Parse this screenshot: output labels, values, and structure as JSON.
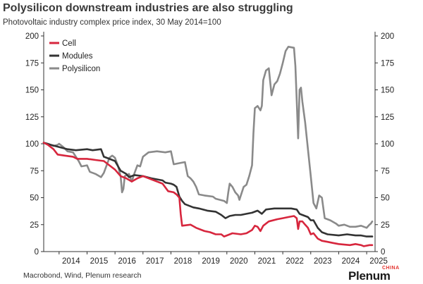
{
  "title": "Polysilicon downstream industries are also struggling",
  "subtitle": "Photovoltaic industry complex price index, 30 May 2014=100",
  "source": "Macrobond, Wind, Plenum research",
  "logo": {
    "word": "Plenum",
    "tag": "CHINA"
  },
  "colors": {
    "cell": "#d7263d",
    "modules": "#333333",
    "polysilicon": "#8a8a8a",
    "accent": "#e3342f"
  },
  "chart_data": {
    "type": "line",
    "title": "Polysilicon downstream industries are also struggling",
    "subtitle": "Photovoltaic industry complex price index, 30 May 2014=100",
    "xlim": [
      2013.45,
      2025.3
    ],
    "ylim": [
      0,
      200
    ],
    "y_ticks": [
      0,
      25,
      50,
      75,
      100,
      125,
      150,
      175,
      200
    ],
    "x_ticks": [
      {
        "label": "2014",
        "x": 2014.0
      },
      {
        "label": "2015",
        "x": 2015.0
      },
      {
        "label": "2016",
        "x": 2016.0
      },
      {
        "label": "2017",
        "x": 2017.0
      },
      {
        "label": "2018",
        "x": 2018.0
      },
      {
        "label": "2019",
        "x": 2019.0
      },
      {
        "label": "2020",
        "x": 2020.0
      },
      {
        "label": "2021",
        "x": 2021.0
      },
      {
        "label": "2022",
        "x": 2022.0
      },
      {
        "label": "2023",
        "x": 2023.0
      },
      {
        "label": "2024",
        "x": 2024.0
      },
      {
        "label": "2025",
        "x": 2025.0
      }
    ],
    "grid": false,
    "legend": "top-left",
    "series": [
      {
        "name": "Cell",
        "color": "#d7263d",
        "points": [
          [
            2013.45,
            101
          ],
          [
            2013.6,
            99
          ],
          [
            2013.8,
            95
          ],
          [
            2013.95,
            90
          ],
          [
            2014.2,
            89
          ],
          [
            2014.5,
            88
          ],
          [
            2014.65,
            86
          ],
          [
            2015.0,
            86
          ],
          [
            2015.3,
            85
          ],
          [
            2015.6,
            84
          ],
          [
            2015.8,
            80
          ],
          [
            2016.0,
            76
          ],
          [
            2016.2,
            70
          ],
          [
            2016.4,
            68
          ],
          [
            2016.6,
            65
          ],
          [
            2016.8,
            68
          ],
          [
            2017.0,
            70
          ],
          [
            2017.3,
            67
          ],
          [
            2017.5,
            65
          ],
          [
            2017.7,
            63
          ],
          [
            2017.9,
            56
          ],
          [
            2018.1,
            55
          ],
          [
            2018.2,
            53
          ],
          [
            2018.3,
            50
          ],
          [
            2018.35,
            35
          ],
          [
            2018.4,
            24
          ],
          [
            2018.7,
            25
          ],
          [
            2018.9,
            22
          ],
          [
            2019.2,
            19
          ],
          [
            2019.4,
            18
          ],
          [
            2019.6,
            16
          ],
          [
            2019.8,
            16
          ],
          [
            2019.9,
            14
          ],
          [
            2020.0,
            15
          ],
          [
            2020.2,
            17
          ],
          [
            2020.5,
            16
          ],
          [
            2020.7,
            17
          ],
          [
            2020.9,
            20
          ],
          [
            2021.0,
            24
          ],
          [
            2021.1,
            23
          ],
          [
            2021.2,
            19
          ],
          [
            2021.3,
            24
          ],
          [
            2021.5,
            28
          ],
          [
            2021.8,
            30
          ],
          [
            2022.0,
            31
          ],
          [
            2022.2,
            32
          ],
          [
            2022.4,
            33
          ],
          [
            2022.5,
            31
          ],
          [
            2022.55,
            21
          ],
          [
            2022.6,
            28
          ],
          [
            2022.7,
            28
          ],
          [
            2022.8,
            25
          ],
          [
            2022.9,
            22
          ],
          [
            2023.0,
            16
          ],
          [
            2023.1,
            17
          ],
          [
            2023.25,
            12
          ],
          [
            2023.4,
            10
          ],
          [
            2023.6,
            9
          ],
          [
            2023.8,
            8
          ],
          [
            2024.0,
            7
          ],
          [
            2024.4,
            6
          ],
          [
            2024.6,
            7
          ],
          [
            2024.8,
            6
          ],
          [
            2024.9,
            5
          ],
          [
            2025.1,
            6
          ],
          [
            2025.2,
            6
          ]
        ]
      },
      {
        "name": "Modules",
        "color": "#333333",
        "points": [
          [
            2013.45,
            101
          ],
          [
            2013.7,
            99
          ],
          [
            2014.0,
            97
          ],
          [
            2014.3,
            95
          ],
          [
            2014.6,
            94
          ],
          [
            2015.0,
            95
          ],
          [
            2015.2,
            94
          ],
          [
            2015.5,
            95
          ],
          [
            2015.6,
            88
          ],
          [
            2015.8,
            86
          ],
          [
            2016.0,
            84
          ],
          [
            2016.2,
            75
          ],
          [
            2016.4,
            72
          ],
          [
            2016.5,
            69
          ],
          [
            2016.7,
            71
          ],
          [
            2017.0,
            70
          ],
          [
            2017.3,
            68
          ],
          [
            2017.5,
            67
          ],
          [
            2017.7,
            66
          ],
          [
            2017.8,
            64
          ],
          [
            2018.0,
            63
          ],
          [
            2018.1,
            62
          ],
          [
            2018.2,
            60
          ],
          [
            2018.3,
            51
          ],
          [
            2018.4,
            47
          ],
          [
            2018.5,
            44
          ],
          [
            2018.8,
            41
          ],
          [
            2019.0,
            40
          ],
          [
            2019.3,
            38
          ],
          [
            2019.6,
            37
          ],
          [
            2019.8,
            34
          ],
          [
            2019.95,
            31
          ],
          [
            2020.1,
            33
          ],
          [
            2020.3,
            34
          ],
          [
            2020.5,
            34
          ],
          [
            2020.7,
            35
          ],
          [
            2020.9,
            36
          ],
          [
            2021.1,
            38
          ],
          [
            2021.25,
            35
          ],
          [
            2021.4,
            39
          ],
          [
            2021.7,
            40
          ],
          [
            2022.0,
            40
          ],
          [
            2022.3,
            40
          ],
          [
            2022.5,
            39
          ],
          [
            2022.6,
            35
          ],
          [
            2022.7,
            34
          ],
          [
            2022.9,
            32
          ],
          [
            2023.0,
            29
          ],
          [
            2023.1,
            29
          ],
          [
            2023.25,
            22
          ],
          [
            2023.4,
            18
          ],
          [
            2023.6,
            16
          ],
          [
            2024.0,
            15
          ],
          [
            2024.3,
            16
          ],
          [
            2024.6,
            15
          ],
          [
            2024.8,
            15
          ],
          [
            2025.0,
            14
          ],
          [
            2025.2,
            14
          ]
        ]
      },
      {
        "name": "Polysilicon",
        "color": "#8a8a8a",
        "points": [
          [
            2013.45,
            101
          ],
          [
            2013.6,
            100
          ],
          [
            2013.8,
            98
          ],
          [
            2013.95,
            99
          ],
          [
            2014.0,
            100
          ],
          [
            2014.15,
            97
          ],
          [
            2014.3,
            93
          ],
          [
            2014.5,
            92
          ],
          [
            2014.7,
            84
          ],
          [
            2014.8,
            79
          ],
          [
            2015.0,
            80
          ],
          [
            2015.1,
            74
          ],
          [
            2015.3,
            72
          ],
          [
            2015.5,
            69
          ],
          [
            2015.6,
            73
          ],
          [
            2015.8,
            87
          ],
          [
            2015.9,
            89
          ],
          [
            2016.0,
            87
          ],
          [
            2016.1,
            80
          ],
          [
            2016.2,
            70
          ],
          [
            2016.25,
            55
          ],
          [
            2016.3,
            58
          ],
          [
            2016.35,
            70
          ],
          [
            2016.5,
            72
          ],
          [
            2016.6,
            65
          ],
          [
            2016.7,
            73
          ],
          [
            2016.8,
            80
          ],
          [
            2016.9,
            79
          ],
          [
            2017.0,
            88
          ],
          [
            2017.2,
            92
          ],
          [
            2017.5,
            93
          ],
          [
            2017.8,
            92
          ],
          [
            2018.0,
            93
          ],
          [
            2018.1,
            81
          ],
          [
            2018.3,
            82
          ],
          [
            2018.5,
            83
          ],
          [
            2018.6,
            70
          ],
          [
            2018.7,
            68
          ],
          [
            2018.8,
            65
          ],
          [
            2018.9,
            60
          ],
          [
            2019.0,
            53
          ],
          [
            2019.2,
            52
          ],
          [
            2019.5,
            51
          ],
          [
            2019.6,
            49
          ],
          [
            2019.9,
            47
          ],
          [
            2020.0,
            45
          ],
          [
            2020.05,
            55
          ],
          [
            2020.1,
            63
          ],
          [
            2020.2,
            60
          ],
          [
            2020.3,
            55
          ],
          [
            2020.4,
            52
          ],
          [
            2020.45,
            48
          ],
          [
            2020.5,
            52
          ],
          [
            2020.6,
            60
          ],
          [
            2020.7,
            62
          ],
          [
            2020.8,
            70
          ],
          [
            2020.9,
            80
          ],
          [
            2020.95,
            110
          ],
          [
            2021.0,
            133
          ],
          [
            2021.1,
            135
          ],
          [
            2021.2,
            131
          ],
          [
            2021.25,
            135
          ],
          [
            2021.3,
            159
          ],
          [
            2021.4,
            168
          ],
          [
            2021.5,
            170
          ],
          [
            2021.6,
            145
          ],
          [
            2021.7,
            155
          ],
          [
            2021.8,
            158
          ],
          [
            2021.9,
            165
          ],
          [
            2022.0,
            175
          ],
          [
            2022.1,
            186
          ],
          [
            2022.2,
            190
          ],
          [
            2022.4,
            189
          ],
          [
            2022.45,
            172
          ],
          [
            2022.5,
            140
          ],
          [
            2022.55,
            105
          ],
          [
            2022.6,
            150
          ],
          [
            2022.65,
            152
          ],
          [
            2022.7,
            139
          ],
          [
            2022.8,
            120
          ],
          [
            2022.9,
            95
          ],
          [
            2023.0,
            70
          ],
          [
            2023.1,
            45
          ],
          [
            2023.2,
            40
          ],
          [
            2023.3,
            52
          ],
          [
            2023.4,
            50
          ],
          [
            2023.5,
            31
          ],
          [
            2023.7,
            29
          ],
          [
            2023.9,
            26
          ],
          [
            2024.0,
            24
          ],
          [
            2024.2,
            25
          ],
          [
            2024.4,
            23
          ],
          [
            2024.6,
            23
          ],
          [
            2024.8,
            24
          ],
          [
            2025.0,
            22
          ],
          [
            2025.1,
            25
          ],
          [
            2025.15,
            26
          ],
          [
            2025.2,
            28
          ]
        ]
      }
    ]
  }
}
